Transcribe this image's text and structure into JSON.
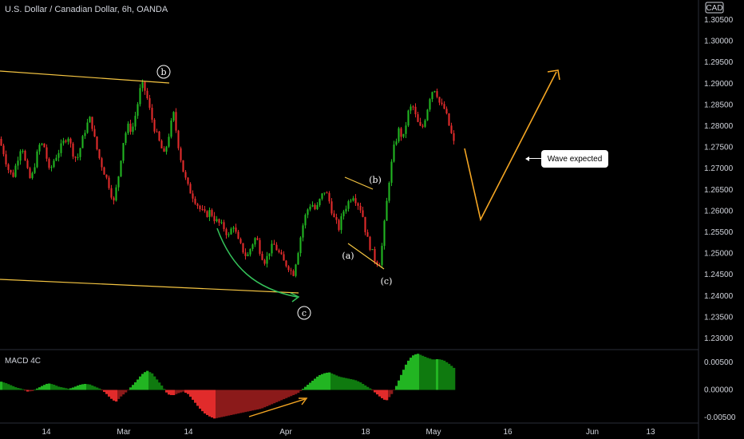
{
  "chart_data": [
    {
      "type": "candlestick",
      "title": "U.S. Dollar / Canadian Dollar, 6h, OANDA",
      "currency_badge": "CAD",
      "ylim": [
        1.225,
        1.31
      ],
      "yticks": [
        "1.30500",
        "1.30000",
        "1.29500",
        "1.29000",
        "1.28500",
        "1.28000",
        "1.27500",
        "1.27000",
        "1.26500",
        "1.26000",
        "1.25500",
        "1.25000",
        "1.24500",
        "1.24000",
        "1.23500",
        "1.23000"
      ],
      "xticks": [
        "14",
        "Mar",
        "14",
        "Apr",
        "18",
        "May",
        "16",
        "Jun",
        "13"
      ],
      "price_path": [
        1.277,
        1.274,
        1.27,
        1.268,
        1.272,
        1.276,
        1.27,
        1.267,
        1.272,
        1.276,
        1.275,
        1.269,
        1.272,
        1.274,
        1.276,
        1.278,
        1.274,
        1.272,
        1.276,
        1.28,
        1.282,
        1.276,
        1.272,
        1.269,
        1.266,
        1.262,
        1.268,
        1.276,
        1.28,
        1.279,
        1.284,
        1.29,
        1.288,
        1.283,
        1.279,
        1.276,
        1.273,
        1.278,
        1.283,
        1.276,
        1.27,
        1.266,
        1.264,
        1.262,
        1.26,
        1.259,
        1.26,
        1.258,
        1.257,
        1.256,
        1.254,
        1.257,
        1.253,
        1.251,
        1.249,
        1.252,
        1.254,
        1.25,
        1.248,
        1.251,
        1.252,
        1.25,
        1.248,
        1.247,
        1.245,
        1.25,
        1.256,
        1.26,
        1.262,
        1.26,
        1.263,
        1.265,
        1.262,
        1.258,
        1.256,
        1.26,
        1.262,
        1.264,
        1.262,
        1.26,
        1.254,
        1.251,
        1.248,
        1.248,
        1.258,
        1.268,
        1.275,
        1.279,
        1.277,
        1.283,
        1.285,
        1.281,
        1.279,
        1.283,
        1.288,
        1.289,
        1.285,
        1.284,
        1.28,
        1.276
      ],
      "macd_pane": {
        "title": "MACD 4C",
        "ylim": [
          -0.006,
          0.0068
        ],
        "yticks": [
          "0.00500",
          "0.00000",
          "-0.00500"
        ],
        "histogram": [
          0.0015,
          0.0012,
          0.0008,
          0.0004,
          0.0002,
          -0.0003,
          -0.0002,
          0.0003,
          0.0008,
          0.0012,
          0.001,
          0.0006,
          0.0004,
          0.0002,
          0.0005,
          0.0009,
          0.0011,
          0.001,
          0.0006,
          0.0002,
          -0.0005,
          -0.0015,
          -0.0022,
          -0.0012,
          -0.0004,
          0.0006,
          0.0016,
          0.0028,
          0.0035,
          0.003,
          0.0018,
          0.0006,
          -0.0008,
          -0.001,
          -0.0006,
          -0.0003,
          -0.0008,
          -0.002,
          -0.0032,
          -0.0042,
          -0.0048,
          -0.0052,
          -0.005,
          -0.0048,
          -0.0046,
          -0.0044,
          -0.0042,
          -0.004,
          -0.0038,
          -0.0036,
          -0.0034,
          -0.003,
          -0.0026,
          -0.0022,
          -0.0018,
          -0.0014,
          -0.001,
          -0.0006,
          0.0002,
          0.001,
          0.0018,
          0.0026,
          0.003,
          0.0032,
          0.0028,
          0.0024,
          0.0022,
          0.002,
          0.0018,
          0.0014,
          0.0008,
          0.0002,
          -0.0006,
          -0.0014,
          -0.002,
          -0.0008,
          0.0008,
          0.003,
          0.005,
          0.0062,
          0.0066,
          0.0062,
          0.0058,
          0.0055,
          0.0056,
          0.0054,
          0.0048,
          0.004
        ]
      }
    }
  ],
  "annotations": {
    "wave_b_major": "b",
    "wave_c_major": "c",
    "wave_a_minor": "(a)",
    "wave_b_minor": "(b)",
    "wave_c_minor": "(c)",
    "callout_text": "Wave expected"
  },
  "colors": {
    "background": "#000000",
    "bull": "#22b522",
    "bear": "#e12b2b",
    "trendline": "#f5c542",
    "projection": "#f5a623",
    "curve": "#35c25a"
  }
}
